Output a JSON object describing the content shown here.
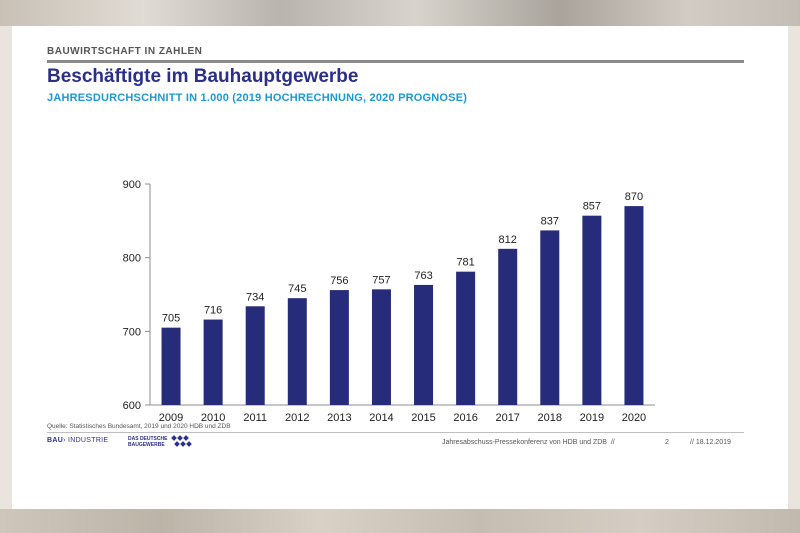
{
  "header": {
    "kicker": "BAUWIRTSCHAFT IN ZAHLEN",
    "title": "Beschäftigte im Bauhauptgewerbe",
    "subtitle": "JAHRESDURCHSCHNITT IN 1.000 (2019 HOCHRECHNUNG, 2020 PROGNOSE)"
  },
  "chart_data": {
    "type": "bar",
    "categories": [
      "2009",
      "2010",
      "2011",
      "2012",
      "2013",
      "2014",
      "2015",
      "2016",
      "2017",
      "2018",
      "2019",
      "2020"
    ],
    "values": [
      705,
      716,
      734,
      745,
      756,
      757,
      763,
      781,
      812,
      837,
      857,
      870
    ],
    "ylim": [
      600,
      900
    ],
    "yticks": [
      600,
      700,
      800,
      900
    ],
    "bar_color": "#262b7a",
    "grid": false,
    "legend": "none"
  },
  "footer": {
    "source": "Quelle: Statistisches Bundesamt, 2019 und 2020 HDB und ZDB",
    "logo_bau": "BAU",
    "logo_industrie": "INDUSTRIE",
    "logo_zdb_line1": "DAS DEUTSCHE",
    "logo_zdb_line2": "BAUGEWERBE",
    "event": "Jahresabschuss-Pressekonferenz von HDB und ZDB",
    "separator": "//",
    "page": "2",
    "date": "// 18.12.2019"
  },
  "colors": {
    "title": "#2b2f8a",
    "subtitle": "#1a9ad6",
    "bars": "#262b7a"
  }
}
